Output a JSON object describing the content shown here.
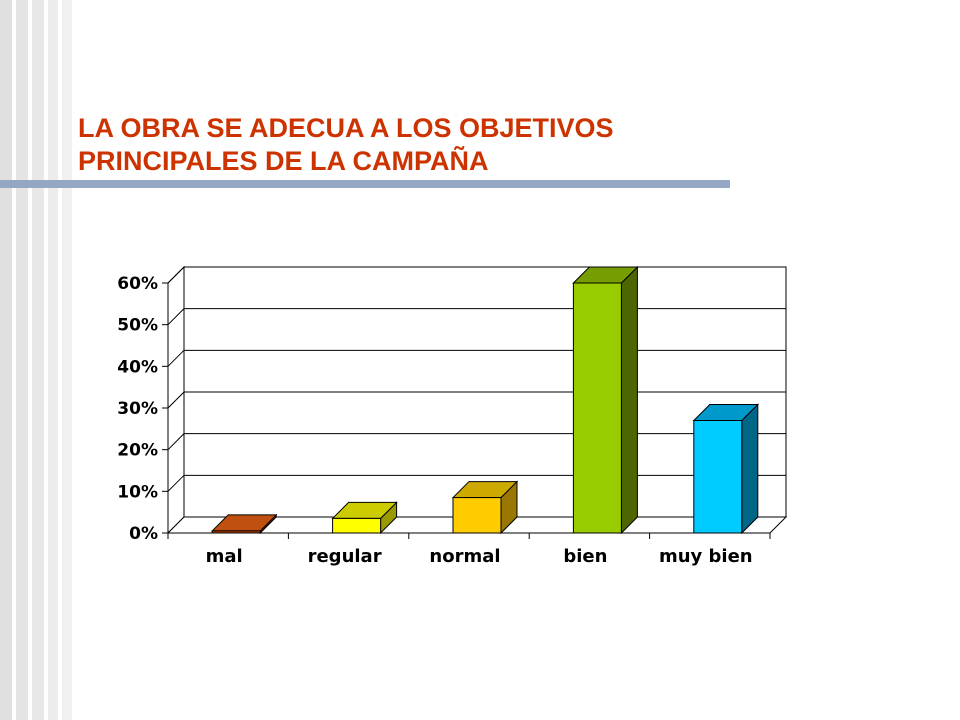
{
  "slide": {
    "title_lines": [
      "LA OBRA SE ADECUA A LOS OBJETIVOS",
      "PRINCIPALES  DE LA CAMPAÑA"
    ]
  },
  "chart_data": {
    "type": "bar",
    "title": "LA OBRA SE ADECUA A LOS OBJETIVOS PRINCIPALES DE LA CAMPAÑA",
    "xlabel": "",
    "ylabel": "",
    "categories": [
      "mal",
      "regular",
      "normal",
      "bien",
      "muy bien"
    ],
    "values": [
      0.5,
      3.5,
      8.5,
      60,
      27
    ],
    "unit": "%",
    "ylim": [
      0,
      60
    ],
    "yticks": [
      "0%",
      "10%",
      "20%",
      "30%",
      "40%",
      "50%",
      "60%"
    ],
    "grid": true,
    "legend": "none",
    "three_d": true,
    "colors": {
      "front": [
        "#cc4400",
        "#ffff00",
        "#ffcc00",
        "#99cc00",
        "#00ccff"
      ],
      "top": [
        "#c05010",
        "#cccc00",
        "#ccaa00",
        "#779e00",
        "#0099cc"
      ],
      "side": [
        "#803000",
        "#999900",
        "#997700",
        "#4d6600",
        "#006688"
      ]
    }
  }
}
